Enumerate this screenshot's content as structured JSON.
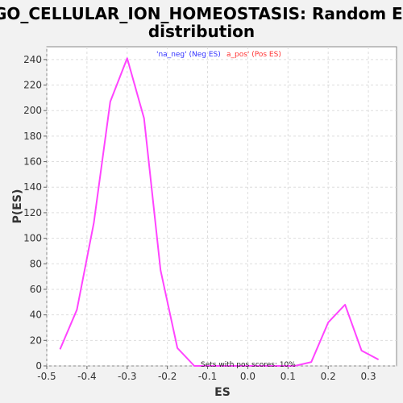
{
  "chart_data": {
    "type": "line",
    "title_lines": [
      "GO_CELLULAR_ION_HOMEOSTASIS: Random ES",
      "distribution"
    ],
    "xlabel": "ES",
    "ylabel": "P(ES)",
    "xlim": [
      -0.5,
      0.37
    ],
    "ylim": [
      0,
      250
    ],
    "x_ticks": [
      -0.5,
      -0.4,
      -0.3,
      -0.2,
      -0.1,
      0.0,
      0.1,
      0.2,
      0.3
    ],
    "x_tick_labels": [
      "-0.5",
      "-0.4",
      "-0.3",
      "-0.2",
      "-0.1",
      "0.0",
      "0.1",
      "0.2",
      "0.3"
    ],
    "y_ticks": [
      0,
      20,
      40,
      60,
      80,
      100,
      120,
      140,
      160,
      180,
      200,
      220,
      240
    ],
    "y_tick_labels": [
      "0",
      "20",
      "40",
      "60",
      "80",
      "100",
      "120",
      "140",
      "160",
      "180",
      "200",
      "220",
      "240"
    ],
    "grid": true,
    "legend": [
      {
        "label": "'na_neg' (Neg ES)",
        "color": "#3333ff"
      },
      {
        "label": "a_pos' (Pos ES)",
        "color": "#ff3333"
      }
    ],
    "legend_position": "top-center",
    "annotation": "Sets with pos scores: 10%",
    "line_color": "#ff44ff",
    "x": [
      -0.467,
      -0.425,
      -0.383,
      -0.342,
      -0.3,
      -0.258,
      -0.217,
      -0.175,
      -0.133,
      -0.092,
      -0.05,
      -0.008,
      0.033,
      0.075,
      0.117,
      0.158,
      0.2,
      0.242,
      0.283,
      0.325
    ],
    "y": [
      13,
      44,
      112,
      207,
      241,
      194,
      75,
      14,
      0,
      0,
      0,
      0,
      0,
      0,
      0,
      3,
      34,
      48,
      12,
      5
    ]
  }
}
